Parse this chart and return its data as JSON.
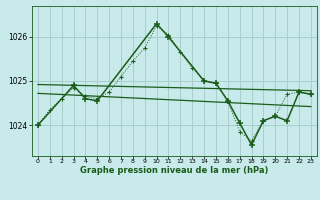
{
  "background_color": "#c8eaea",
  "grid_color": "#a8cece",
  "line_color": "#1a5c1a",
  "title": "Graphe pression niveau de la mer (hPa)",
  "xlim": [
    -0.5,
    23.5
  ],
  "ylim": [
    1023.3,
    1026.7
  ],
  "yticks": [
    1024,
    1025,
    1026
  ],
  "xticks": [
    0,
    1,
    2,
    3,
    4,
    5,
    6,
    7,
    8,
    9,
    10,
    11,
    12,
    13,
    14,
    15,
    16,
    17,
    18,
    19,
    20,
    21,
    22,
    23
  ],
  "series1_x": [
    0,
    1,
    2,
    3,
    4,
    5,
    6,
    7,
    8,
    9,
    10,
    11,
    12,
    13,
    14,
    15,
    16,
    17,
    18,
    19,
    20,
    21,
    22,
    23
  ],
  "series1_y": [
    1024.0,
    1024.35,
    1024.6,
    1024.85,
    1024.65,
    1024.6,
    1024.75,
    1025.1,
    1025.45,
    1025.75,
    1026.25,
    1026.05,
    1025.65,
    1025.3,
    1025.0,
    1024.95,
    1024.55,
    1023.85,
    1023.65,
    1024.1,
    1024.2,
    1024.7,
    1024.75,
    1024.7
  ],
  "series2_x": [
    0,
    3,
    4,
    5,
    10,
    11,
    14,
    15,
    16,
    17,
    18,
    19,
    20,
    21,
    22,
    23
  ],
  "series2_y": [
    1024.0,
    1024.9,
    1024.6,
    1024.55,
    1026.3,
    1026.0,
    1025.0,
    1024.95,
    1024.55,
    1024.05,
    1023.55,
    1024.1,
    1024.2,
    1024.1,
    1024.75,
    1024.7
  ],
  "trend1_x": [
    0,
    23
  ],
  "trend1_y": [
    1024.92,
    1024.78
  ],
  "trend2_x": [
    0,
    23
  ],
  "trend2_y": [
    1024.72,
    1024.42
  ]
}
